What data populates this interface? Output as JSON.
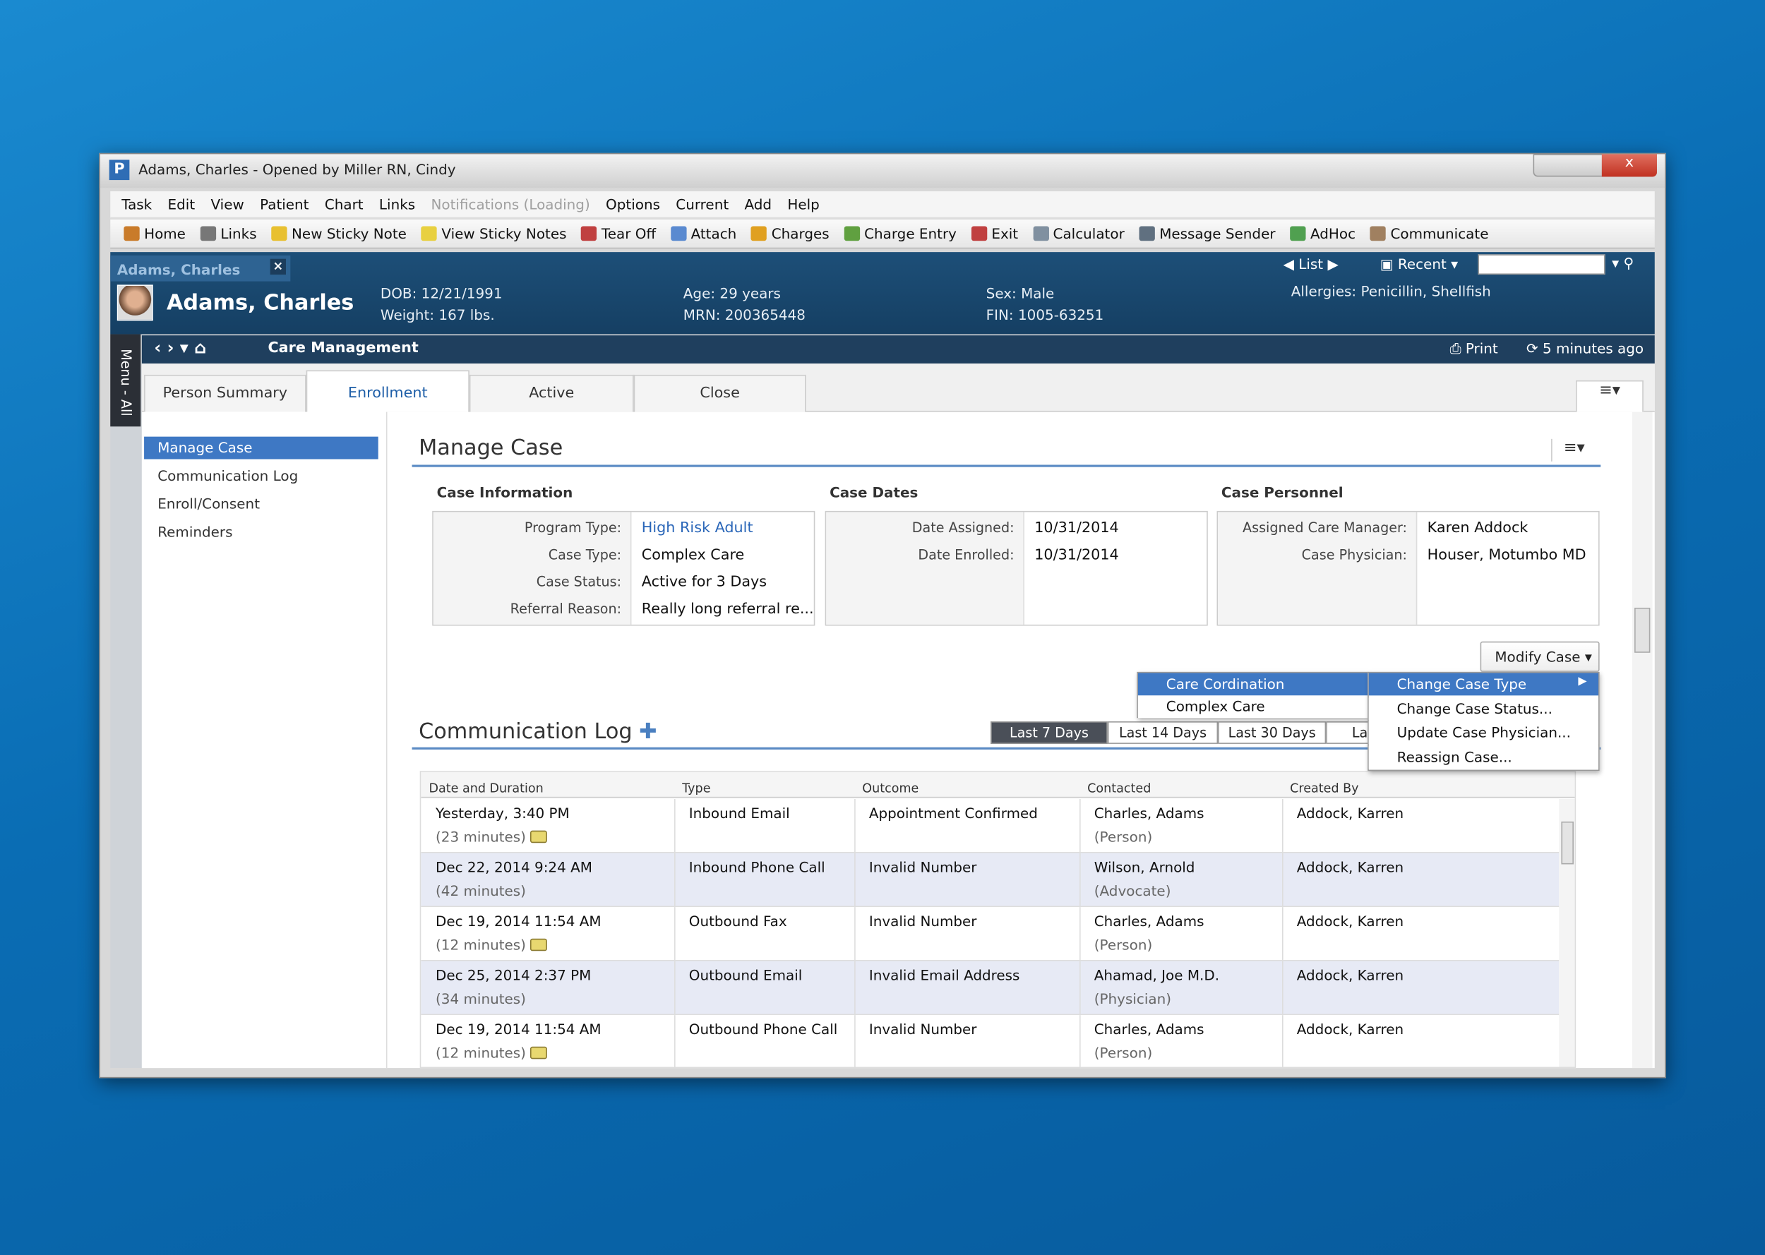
{
  "window": {
    "title": "Adams, Charles - Opened by Miller RN, Cindy"
  },
  "menu": [
    "Task",
    "Edit",
    "View",
    "Patient",
    "Chart",
    "Links",
    "Notifications (Loading)",
    "Options",
    "Current",
    "Add",
    "Help"
  ],
  "toolbar": [
    "Home",
    "Links",
    "New Sticky Note",
    "View Sticky Notes",
    "Tear Off",
    "Attach",
    "Charges",
    "Charge Entry",
    "Exit",
    "Calculator",
    "Message Sender",
    "AdHoc",
    "Communicate"
  ],
  "patient_tab": "Adams, Charles",
  "nav": {
    "list": "List",
    "recent": "Recent"
  },
  "banner": {
    "name": "Adams, Charles",
    "dob": "DOB: 12/21/1991",
    "weight": "Weight: 167 lbs.",
    "age": "Age: 29 years",
    "mrn": "MRN: 200365448",
    "sex": "Sex: Male",
    "fin": "FIN: 1005-63251",
    "allergies": "Allergies: Penicillin, Shellfish"
  },
  "side_menu_label": "Menu - All",
  "page": {
    "title": "Care Management",
    "print": "Print",
    "refreshed": "5 minutes ago"
  },
  "tabs": [
    "Person Summary",
    "Enrollment",
    "Active",
    "Close"
  ],
  "sidebar": [
    "Manage Case",
    "Communication Log",
    "Enroll/Consent",
    "Reminders"
  ],
  "manage_case": {
    "title": "Manage Case",
    "modify_button": "Modify Case",
    "sections": [
      {
        "heading": "Case Information",
        "fields": [
          {
            "label": "Program Type:",
            "value": "High Risk Adult"
          },
          {
            "label": "Case Type:",
            "value": "Complex Care"
          },
          {
            "label": "Case Status:",
            "value": "Active for 3 Days"
          },
          {
            "label": "Referral Reason:",
            "value": "Really long referral re..."
          }
        ]
      },
      {
        "heading": "Case Dates",
        "fields": [
          {
            "label": "Date Assigned:",
            "value": "10/31/2014"
          },
          {
            "label": "Date Enrolled:",
            "value": "10/31/2014"
          }
        ]
      },
      {
        "heading": "Case Personnel",
        "fields": [
          {
            "label": "Assigned Care Manager:",
            "value": "Karen Addock"
          },
          {
            "label": "Case Physician:",
            "value": "Houser, Motumbo MD"
          }
        ]
      }
    ]
  },
  "dropdown": {
    "items": [
      "Change Case Type",
      "Change Case Status...",
      "Update Case Physician...",
      "Reassign Case..."
    ],
    "submenu": [
      "Care Cordination",
      "Complex Care"
    ]
  },
  "communication_log": {
    "title": "Communication Log",
    "filters": [
      "Last 7 Days",
      "Last 14 Days",
      "Last 30 Days",
      "La"
    ],
    "columns": [
      "Date and Duration",
      "Type",
      "Outcome",
      "Contacted",
      "Created By"
    ],
    "rows": [
      {
        "date": "Yesterday, 3:40 PM",
        "duration": "(23 minutes)",
        "note": true,
        "type": "Inbound Email",
        "outcome": "Appointment Confirmed",
        "contact": "Charles, Adams",
        "role": "(Person)",
        "created_by": "Addock, Karren"
      },
      {
        "date": "Dec 22, 2014 9:24 AM",
        "duration": "(42 minutes)",
        "note": false,
        "type": "Inbound Phone Call",
        "outcome": "Invalid Number",
        "contact": "Wilson, Arnold",
        "role": "(Advocate)",
        "created_by": "Addock, Karren"
      },
      {
        "date": "Dec 19, 2014 11:54 AM",
        "duration": "(12 minutes)",
        "note": true,
        "type": "Outbound Fax",
        "outcome": "Invalid Number",
        "contact": "Charles, Adams",
        "role": "(Person)",
        "created_by": "Addock, Karren"
      },
      {
        "date": "Dec 25, 2014 2:37 PM",
        "duration": "(34 minutes)",
        "note": false,
        "type": "Outbound Email",
        "outcome": "Invalid Email Address",
        "contact": "Ahamad, Joe M.D.",
        "role": "(Physician)",
        "created_by": "Addock, Karren"
      },
      {
        "date": "Dec 19, 2014 11:54 AM",
        "duration": "(12 minutes)",
        "note": true,
        "type": "Outbound Phone Call",
        "outcome": "Invalid Number",
        "contact": "Charles, Adams",
        "role": "(Person)",
        "created_by": "Addock, Karren"
      }
    ]
  }
}
